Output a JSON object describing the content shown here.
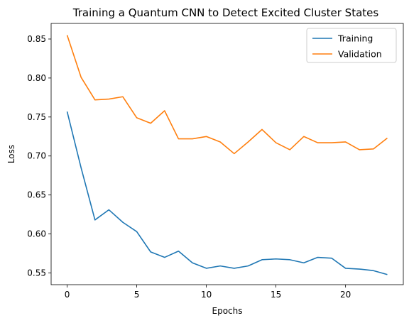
{
  "chart_data": {
    "type": "line",
    "title": "Training a Quantum CNN to Detect Excited Cluster States",
    "xlabel": "Epochs",
    "ylabel": "Loss",
    "xlim": [
      -1.15,
      24.15
    ],
    "ylim": [
      0.535,
      0.87
    ],
    "xticks": [
      0,
      5,
      10,
      15,
      20
    ],
    "yticks": [
      0.55,
      0.6,
      0.65,
      0.7,
      0.75,
      0.8,
      0.85
    ],
    "ytick_labels": [
      "0.55",
      "0.60",
      "0.65",
      "0.70",
      "0.75",
      "0.80",
      "0.85"
    ],
    "legend_position": "top-right",
    "grid": false,
    "x": [
      0,
      1,
      2,
      3,
      4,
      5,
      6,
      7,
      8,
      9,
      10,
      11,
      12,
      13,
      14,
      15,
      16,
      17,
      18,
      19,
      20,
      21,
      22,
      23
    ],
    "series": [
      {
        "name": "Training",
        "color": "#1f77b4",
        "values": [
          0.757,
          0.685,
          0.618,
          0.631,
          0.615,
          0.603,
          0.577,
          0.57,
          0.578,
          0.563,
          0.556,
          0.559,
          0.556,
          0.559,
          0.567,
          0.568,
          0.567,
          0.563,
          0.57,
          0.569,
          0.556,
          0.555,
          0.553,
          0.548
        ]
      },
      {
        "name": "Validation",
        "color": "#ff7f0e",
        "values": [
          0.855,
          0.801,
          0.772,
          0.773,
          0.776,
          0.749,
          0.742,
          0.758,
          0.722,
          0.722,
          0.725,
          0.718,
          0.703,
          0.718,
          0.734,
          0.717,
          0.708,
          0.725,
          0.717,
          0.717,
          0.718,
          0.708,
          0.709,
          0.723
        ]
      }
    ]
  }
}
